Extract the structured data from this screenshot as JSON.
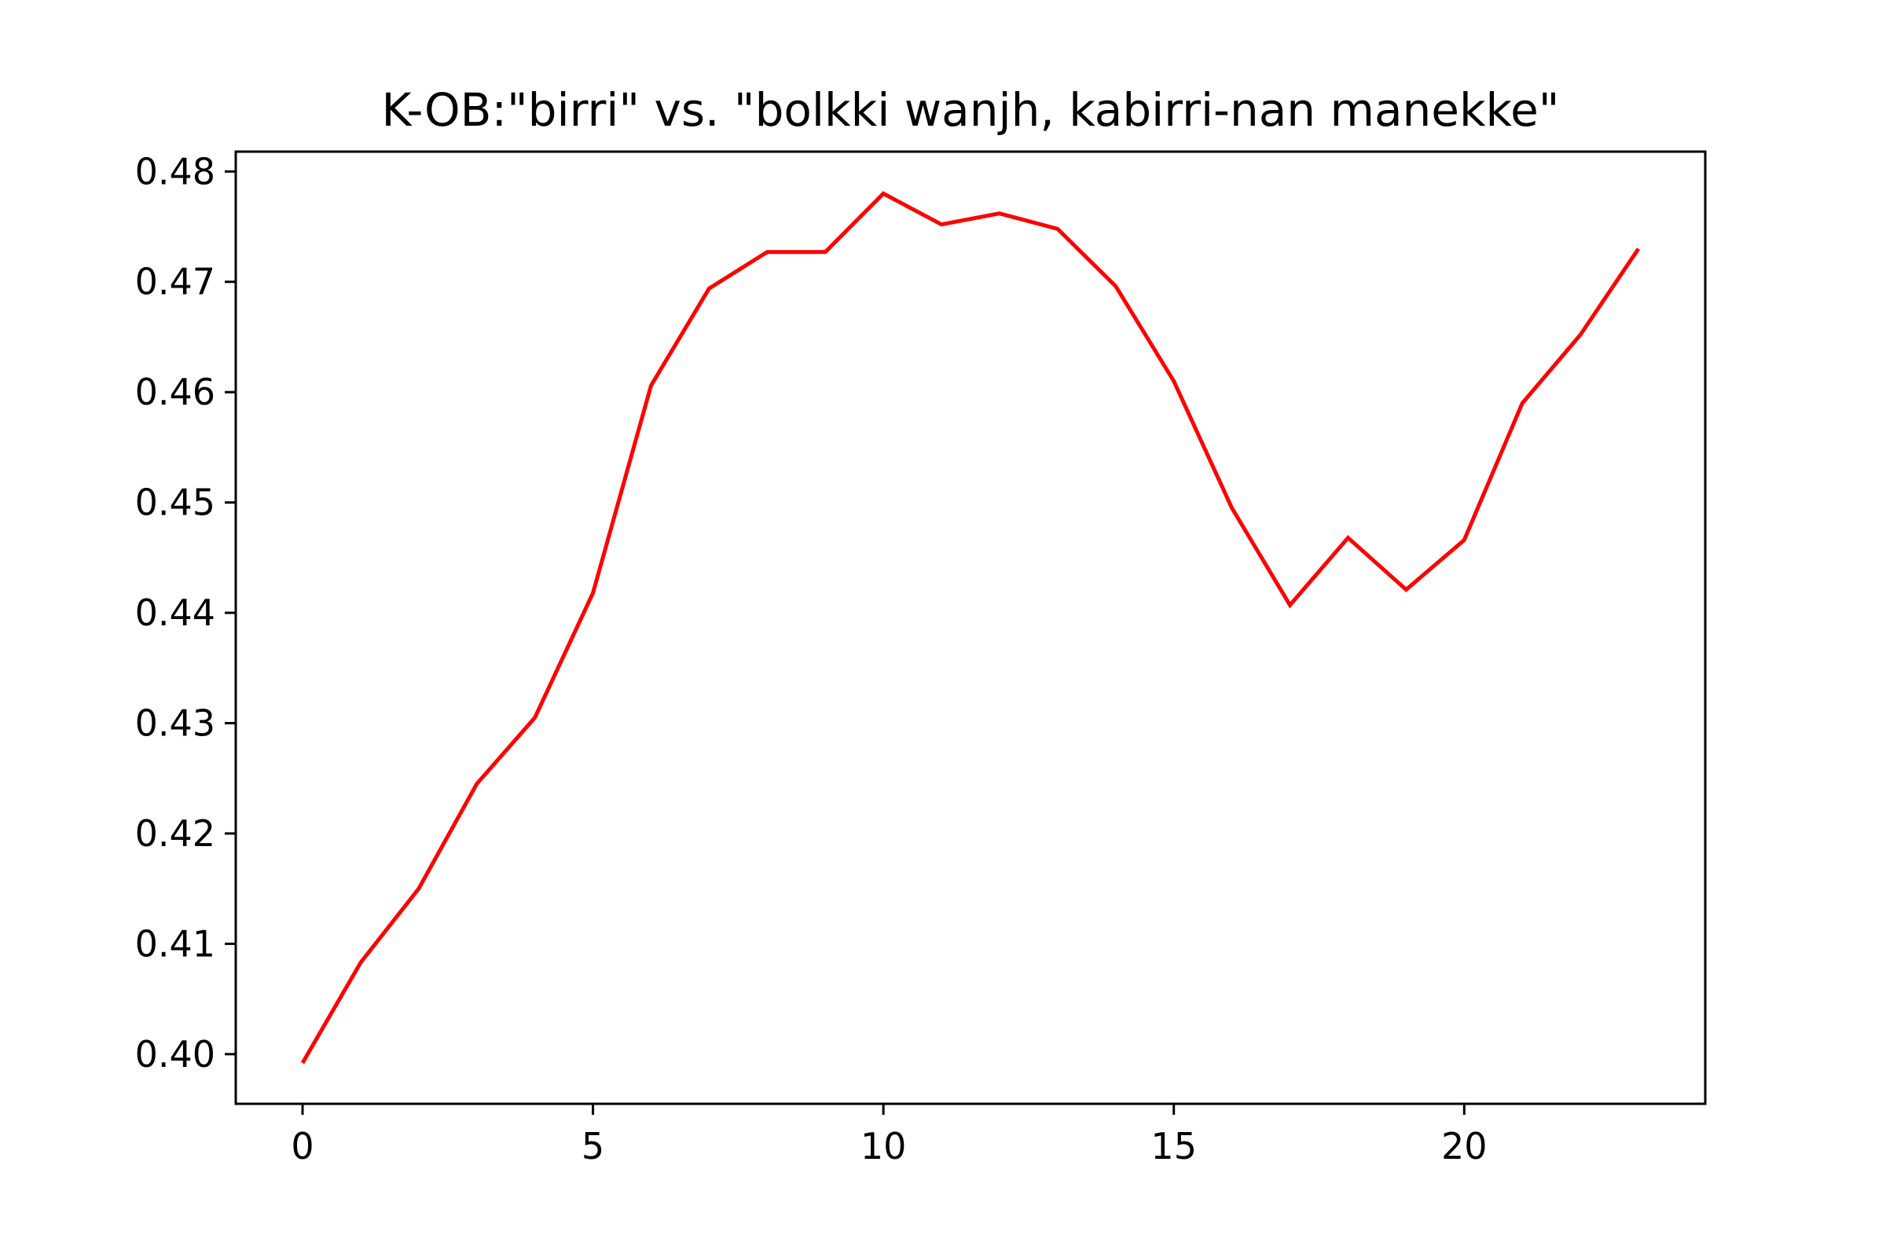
{
  "chart_data": {
    "type": "line",
    "title": "K-OB:\"birri\" vs. \"bolkki wanjh, kabirri-nan manekke\"",
    "xlabel": "",
    "ylabel": "",
    "xlim": [
      -1.15,
      24.15
    ],
    "ylim": [
      0.3955,
      0.4818
    ],
    "xticks": [
      0,
      5,
      10,
      15,
      20
    ],
    "xtick_labels": [
      "0",
      "5",
      "10",
      "15",
      "20"
    ],
    "yticks": [
      0.4,
      0.41,
      0.42,
      0.43,
      0.44,
      0.45,
      0.46,
      0.47,
      0.48
    ],
    "ytick_labels": [
      "0.40",
      "0.41",
      "0.42",
      "0.43",
      "0.44",
      "0.45",
      "0.46",
      "0.47",
      "0.48"
    ],
    "grid": false,
    "series": [
      {
        "color": "#ff0000",
        "x": [
          0,
          1,
          2,
          3,
          4,
          5,
          6,
          7,
          8,
          9,
          10,
          11,
          12,
          13,
          14,
          15,
          16,
          17,
          18,
          19,
          20,
          21,
          22,
          23
        ],
        "values": [
          0.3992,
          0.4083,
          0.415,
          0.4245,
          0.4305,
          0.4418,
          0.4606,
          0.4694,
          0.4727,
          0.4727,
          0.478,
          0.4752,
          0.4762,
          0.4748,
          0.4696,
          0.461,
          0.4495,
          0.4407,
          0.4468,
          0.4421,
          0.4466,
          0.459,
          0.4652,
          0.473
        ]
      }
    ]
  }
}
